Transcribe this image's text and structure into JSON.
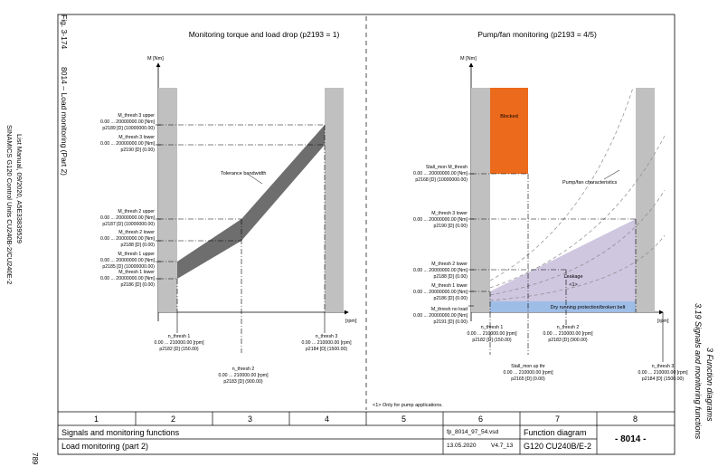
{
  "left_margin": {
    "line1": "SINAMICS G120 Control Units CU240B-2/CU240E-2",
    "line2": "List Manual, 09/2020, A5E33839529",
    "page_number": "789"
  },
  "right_margin": {
    "chapter": "3 Function diagrams",
    "section": "3.19 Signals and monitoring functions"
  },
  "figure": {
    "fig_label": "Fig. 3-174",
    "fig_title": "8014 – Load monitoring (Part 2)"
  },
  "left_diagram": {
    "title": "Monitoring torque and load drop  (p2193 = 1)",
    "y_axis_label": "M [Nm]",
    "x_axis_label": "[rpm]",
    "band_label": "Tolerance bandwidth",
    "m3_upper": {
      "name": "M_thresh 3 upper",
      "range": "0.00 ... 20000000.00  [Nm]",
      "param": "p2189 [D] (10000000.00)"
    },
    "m3_lower": {
      "name": "M_thresh 3 lower",
      "range": "0.00 ... 20000000.00  [Nm]",
      "param": "p2190 [D] (0.00)"
    },
    "m2_upper": {
      "name": "M_thresh 2 upper",
      "range": "0.00 ... 20000000.00  [Nm]",
      "param": "p2187 [D] (10000000.00)"
    },
    "m2_lower": {
      "name": "M_thresh 2 lower",
      "range": "0.00 ... 20000000.00  [Nm]",
      "param": "p2188 [D] (0.00)"
    },
    "m1_upper": {
      "name": "M_thresh 1 upper",
      "range": "0.00 ... 20000000.00  [Nm]",
      "param": "p2185 [D] (10000000.00)"
    },
    "m1_lower": {
      "name": "M_thresh 1 lower",
      "range": "0.00 ... 20000000.00  [Nm]",
      "param": "p2186 [D] (0.00)"
    },
    "n1": {
      "name": "n_thresh 1",
      "range": "0.00 ... 210000.00  [rpm]",
      "param": "p2182 [D] (150.00)"
    },
    "n2": {
      "name": "n_thresh 2",
      "range": "0.00 ... 210000.00  [rpm]",
      "param": "p2183 [D] (900.00)"
    },
    "n3": {
      "name": "n_thresh 3",
      "range": "0.00 ... 210000.00  [rpm]",
      "param": "p2184 [D] (1500.00)"
    }
  },
  "right_diagram": {
    "title": "Pump/fan monitoring  (p2193 = 4/5)",
    "y_axis_label": "M [Nm]",
    "x_axis_label": "[rpm]",
    "blocked_label": "Blocked",
    "characteristics_label": "Pump/fan characteristics",
    "leakage_label": "Leakage",
    "leakage_note": "<1>",
    "dry_label": "Dry running protection/broken belt",
    "stall": {
      "name": "Stall_mon M_thresh",
      "range": "0.00 ... 20000000.00  [Nm]",
      "param": "p2168 [D] (10000000.00)"
    },
    "m3_lower": {
      "name": "M_thresh 3 lower",
      "range": "0.00 ... 20000000.00  [Nm]",
      "param": "p2190 [D] (0.00)"
    },
    "m2_lower": {
      "name": "M_thresh 2 lower",
      "range": "0.00 ... 20000000.00  [Nm]",
      "param": "p2188 [D] (0.00)"
    },
    "m1_lower": {
      "name": "M_thresh 1 lower",
      "range": "0.00 ... 20000000.00  [Nm]",
      "param": "p2186 [D] (0.00)"
    },
    "m_noload": {
      "name": "M_thresh no load",
      "range": "0.00 ... 20000000.00  [Nm]",
      "param": "p2191 [D] (0.00)"
    },
    "n1": {
      "name": "n_thresh 1",
      "range": "0.00 ... 210000.00  [rpm]",
      "param": "p2182 [D] (150.00)"
    },
    "n2": {
      "name": "n_thresh 2",
      "range": "0.00 ... 210000.00  [rpm]",
      "param": "p2183 [D] (900.00)"
    },
    "n3": {
      "name": "n_thresh 3",
      "range": "0.00 ... 210000.00  [rpm]",
      "param": "p2184 [D] (1500.00)"
    },
    "stall_n": {
      "name": "Stall_mon up thr",
      "range": "0.00 ... 210000.00  [rpm]",
      "param": "p2165 [D] (0.00)"
    }
  },
  "footnote": "<1>   Only for pump applications.",
  "footer": {
    "columns": [
      "1",
      "2",
      "3",
      "4",
      "5",
      "6",
      "7",
      "8"
    ],
    "category": "Signals and monitoring functions",
    "title": "Load monitoring (part 2)",
    "file": "fp_8014_97_54.vsd",
    "date": "13.05.2020",
    "version": "V4.7_13",
    "doc_type": "Function diagram",
    "device": "G120 CU240B/E-2",
    "diagram_no": "- 8014 -"
  },
  "colors": {
    "rail": "#c0c0c0",
    "band": "#6e6e6e",
    "blocked": "#ec6a1c",
    "leakage": "#cfc6e0",
    "dry": "#9ebde6",
    "curves": "#8a8a8a"
  }
}
